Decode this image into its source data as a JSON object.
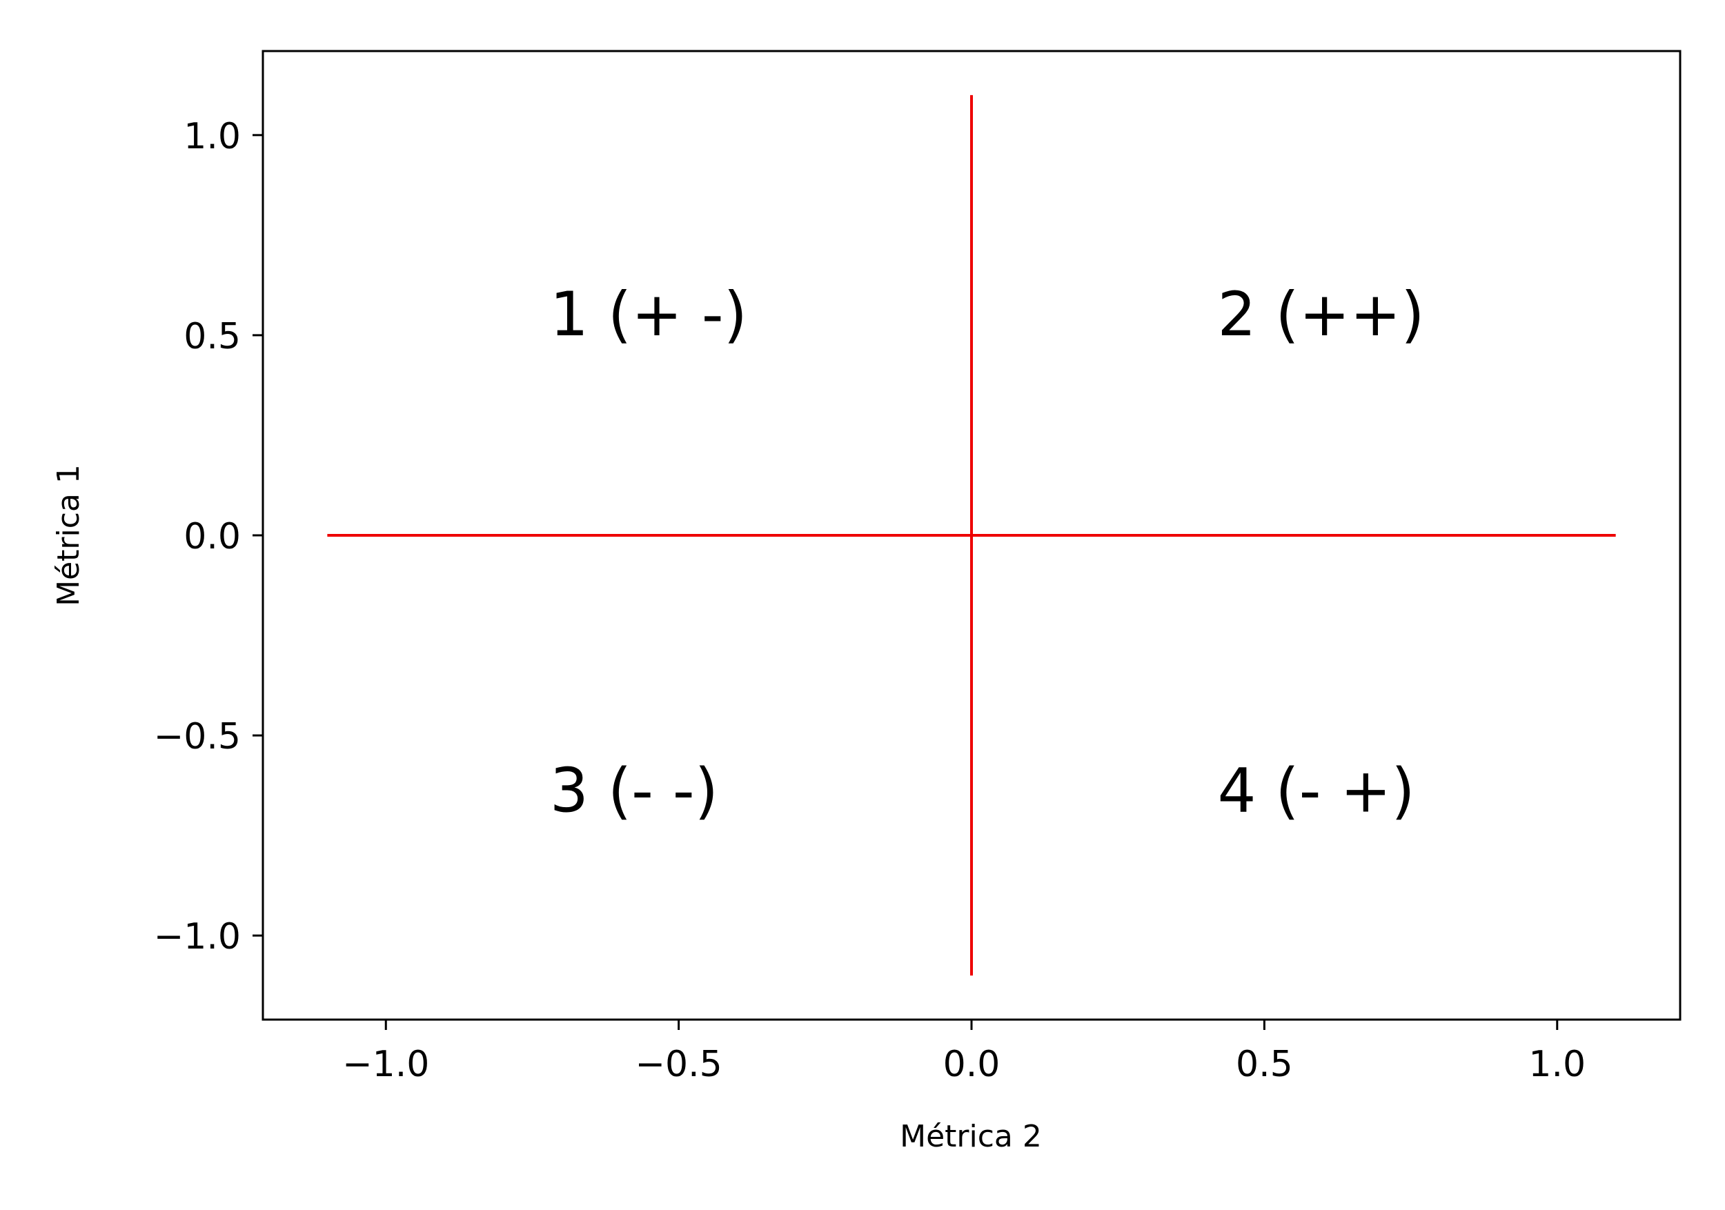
{
  "chart_data": {
    "type": "scatter",
    "title": "",
    "xlabel": "Métrica 2",
    "ylabel": "Métrica 1",
    "xlim": [
      -1.21,
      1.21
    ],
    "ylim": [
      -1.21,
      1.21
    ],
    "grid": false,
    "legend": "none",
    "x_ticks": [
      -1.0,
      -0.5,
      0.0,
      0.5,
      1.0
    ],
    "x_tick_labels": [
      "−1.0",
      "−0.5",
      "0.0",
      "0.5",
      "1.0"
    ],
    "y_ticks": [
      -1.0,
      -0.5,
      0.0,
      0.5,
      1.0
    ],
    "y_tick_labels": [
      "−1.0",
      "−0.5",
      "0.0",
      "0.5",
      "1.0"
    ],
    "lines": [
      {
        "x": [
          -1.1,
          1.1
        ],
        "y": [
          0.0,
          0.0
        ],
        "color": "#ee0000"
      },
      {
        "x": [
          0.0,
          0.0
        ],
        "y": [
          -1.1,
          1.1
        ],
        "color": "#ee0000"
      }
    ],
    "annotations": [
      {
        "text": "1 (+ -)",
        "x": -0.72,
        "y": 0.5
      },
      {
        "text": "2 (++)",
        "x": 0.42,
        "y": 0.5
      },
      {
        "text": "3 (- -)",
        "x": -0.72,
        "y": -0.69
      },
      {
        "text": "4 (- +)",
        "x": 0.42,
        "y": -0.69
      }
    ]
  }
}
